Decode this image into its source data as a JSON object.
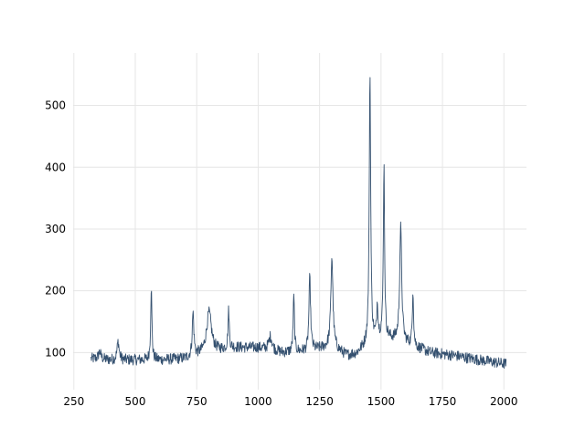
{
  "colors": {
    "line": "#34506f",
    "grid": "#e6e6e6",
    "tick": "#000000",
    "background": "#ffffff"
  },
  "chart_data": {
    "type": "line",
    "title": "",
    "xlabel": "",
    "ylabel": "",
    "xlim": [
      247,
      2092
    ],
    "ylim": [
      40,
      585
    ],
    "grid": true,
    "x_ticks": [
      250,
      500,
      750,
      1000,
      1250,
      1500,
      1750,
      2000
    ],
    "y_ticks": [
      100,
      200,
      300,
      400,
      500
    ],
    "x_tick_labels": [
      "250",
      "500",
      "750",
      "1000",
      "1250",
      "1500",
      "1750",
      "2000"
    ],
    "y_tick_labels": [
      "100",
      "200",
      "300",
      "400",
      "500"
    ],
    "series": [
      {
        "name": "",
        "noise_amplitude": 9,
        "baseline": [
          [
            320,
            90
          ],
          [
            400,
            88
          ],
          [
            500,
            88
          ],
          [
            600,
            88
          ],
          [
            700,
            90
          ],
          [
            800,
            100
          ],
          [
            900,
            108
          ],
          [
            1000,
            108
          ],
          [
            1100,
            100
          ],
          [
            1200,
            102
          ],
          [
            1300,
            110
          ],
          [
            1360,
            95
          ],
          [
            1400,
            98
          ],
          [
            1440,
            112
          ],
          [
            1500,
            125
          ],
          [
            1560,
            120
          ],
          [
            1620,
            112
          ],
          [
            1700,
            100
          ],
          [
            1800,
            95
          ],
          [
            1900,
            88
          ],
          [
            2000,
            82
          ],
          [
            2010,
            82
          ]
        ],
        "peaks": [
          {
            "x": 355,
            "height": 12,
            "width": 6
          },
          {
            "x": 430,
            "height": 30,
            "width": 5
          },
          {
            "x": 565,
            "height": 118,
            "width": 3
          },
          {
            "x": 735,
            "height": 70,
            "width": 4
          },
          {
            "x": 800,
            "height": 65,
            "width": 12
          },
          {
            "x": 880,
            "height": 62,
            "width": 3
          },
          {
            "x": 1050,
            "height": 22,
            "width": 8
          },
          {
            "x": 1145,
            "height": 90,
            "width": 3
          },
          {
            "x": 1210,
            "height": 118,
            "width": 4
          },
          {
            "x": 1300,
            "height": 145,
            "width": 5
          },
          {
            "x": 1455,
            "height": 435,
            "width": 3.5
          },
          {
            "x": 1485,
            "height": 55,
            "width": 3
          },
          {
            "x": 1512,
            "height": 280,
            "width": 3
          },
          {
            "x": 1580,
            "height": 185,
            "width": 5
          },
          {
            "x": 1630,
            "height": 90,
            "width": 3
          }
        ]
      }
    ]
  }
}
